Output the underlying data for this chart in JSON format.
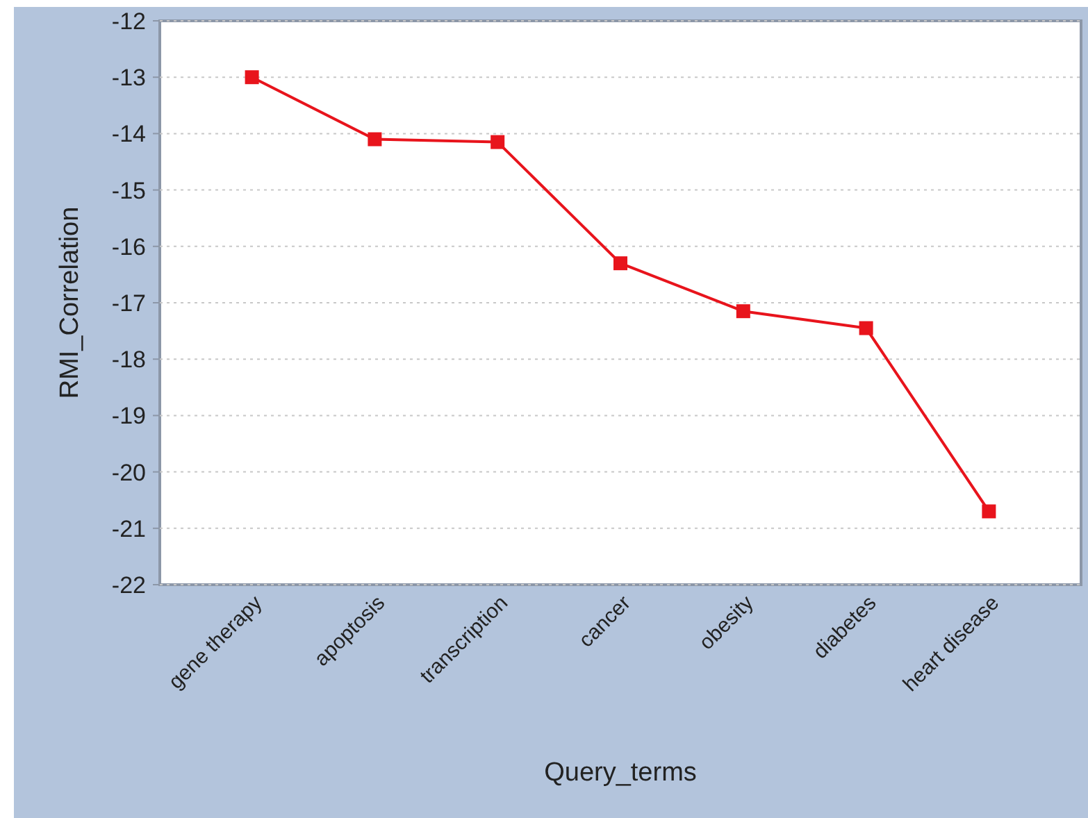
{
  "chart_data": {
    "type": "line",
    "xlabel": "Query_terms",
    "ylabel": "RMI_Correlation",
    "categories": [
      "gene therapy",
      "apoptosis",
      "transcription",
      "cancer",
      "obesity",
      "diabetes",
      "heart disease"
    ],
    "series": [
      {
        "color": "#e8141c",
        "values": [
          -13.0,
          -14.1,
          -14.15,
          -16.3,
          -17.15,
          -17.45,
          -20.7
        ]
      }
    ],
    "ylim": [
      -22,
      -12
    ],
    "yticks": [
      -12,
      -13,
      -14,
      -15,
      -16,
      -17,
      -18,
      -19,
      -20,
      -21,
      -22
    ],
    "grid": "y",
    "marker": "square",
    "line_style": "solid"
  }
}
